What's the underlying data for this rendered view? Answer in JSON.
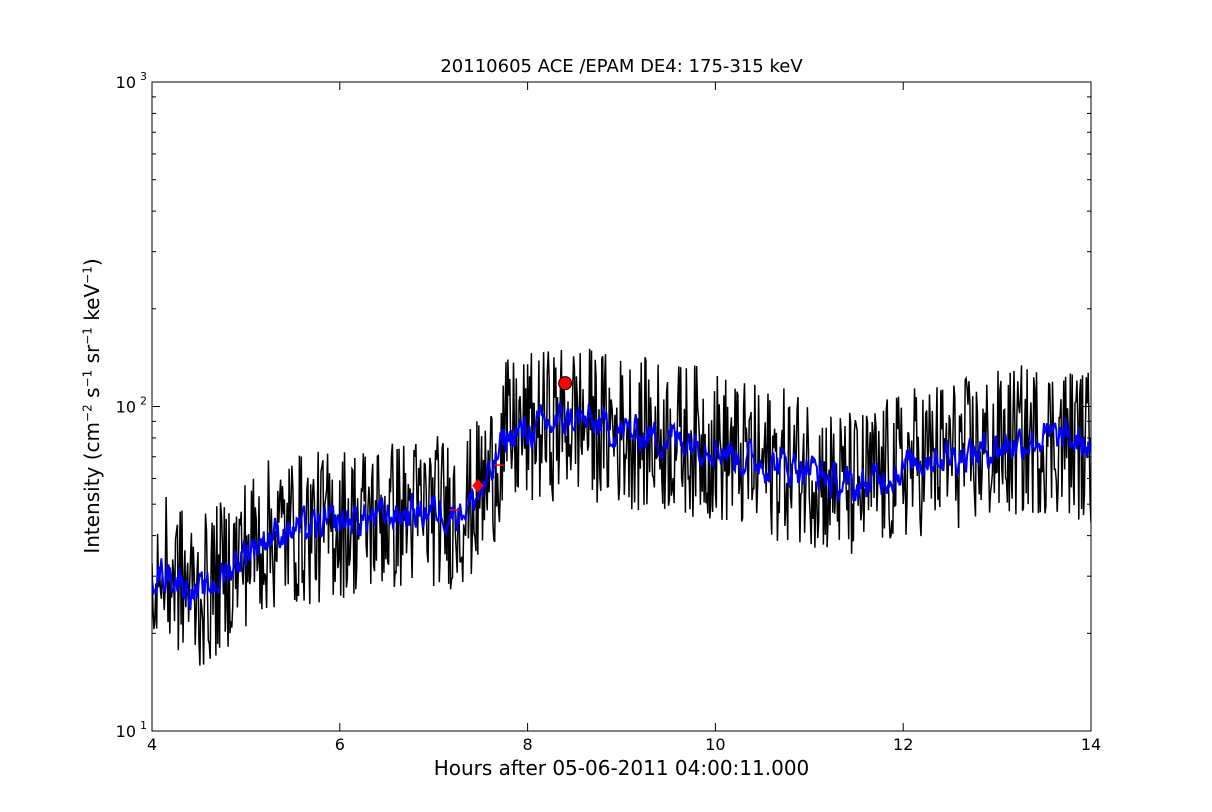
{
  "chart_data": {
    "type": "line",
    "title": "20110605 ACE /EPAM DE4: 175-315 keV",
    "xlabel": "Hours after 05-06-2011 04:00:11.000",
    "ylabel": {
      "prefix": "Intensity (cm",
      "exp1": "−2",
      "s": " s",
      "exp2": "−1",
      "sr": " sr",
      "exp3": "−1",
      "kev": " keV",
      "exp4": "−1",
      "suffix": ")"
    },
    "xlim": [
      4,
      14
    ],
    "ylim": [
      10,
      1000
    ],
    "yscale": "log",
    "xticks": [
      4,
      6,
      8,
      10,
      12,
      14
    ],
    "yticks": [
      {
        "value": 10,
        "base": "10",
        "exp": "1"
      },
      {
        "value": 100,
        "base": "10",
        "exp": "2"
      },
      {
        "value": 1000,
        "base": "10",
        "exp": "3"
      }
    ],
    "grid": false,
    "series": [
      {
        "color": "#000000",
        "x": [
          4.0,
          4.25,
          4.5,
          4.75,
          5.0,
          5.25,
          5.5,
          5.75,
          6.0,
          6.25,
          6.5,
          6.75,
          7.0,
          7.2,
          7.4,
          7.6,
          7.75,
          8.0,
          8.25,
          8.5,
          8.75,
          9.0,
          9.25,
          9.5,
          9.75,
          10.0,
          10.25,
          10.5,
          10.75,
          11.0,
          11.25,
          11.5,
          11.75,
          12.0,
          12.25,
          12.5,
          12.75,
          13.0,
          13.25,
          13.5,
          13.75,
          14.0
        ],
        "y": [
          31,
          30,
          26,
          30,
          36,
          40,
          42,
          42,
          44,
          45,
          46,
          47,
          48,
          47,
          50,
          60,
          80,
          84,
          88,
          92,
          87,
          84,
          82,
          80,
          79,
          76,
          70,
          67,
          66,
          65,
          58,
          56,
          60,
          65,
          70,
          71,
          72,
          75,
          78,
          80,
          79,
          75
        ],
        "noise": 0.55
      },
      {
        "color": "#0000ff",
        "x": [
          4.0,
          4.25,
          4.5,
          4.75,
          5.0,
          5.25,
          5.5,
          5.75,
          6.0,
          6.25,
          6.5,
          6.75,
          7.0,
          7.2,
          7.4,
          7.6,
          7.75,
          8.0,
          8.25,
          8.5,
          8.75,
          9.0,
          9.25,
          9.5,
          9.75,
          10.0,
          10.25,
          10.5,
          10.75,
          11.0,
          11.25,
          11.5,
          11.75,
          12.0,
          12.25,
          12.5,
          12.75,
          13.0,
          13.25,
          13.5,
          13.75,
          14.0
        ],
        "y": [
          31,
          30,
          26,
          30,
          36,
          40,
          42,
          42,
          44,
          45,
          46,
          47,
          48,
          47,
          50,
          60,
          80,
          84,
          88,
          92,
          87,
          84,
          82,
          80,
          79,
          76,
          70,
          67,
          66,
          65,
          58,
          56,
          60,
          65,
          70,
          71,
          72,
          75,
          78,
          80,
          79,
          75
        ],
        "noise": 0.22
      }
    ],
    "markers": [
      {
        "x": 8.4,
        "y": 118,
        "shape": "circle",
        "color": "#ff0000"
      },
      {
        "x": 7.47,
        "y": 57,
        "shape": "diamond",
        "color": "#ff0000"
      },
      {
        "x": 7.22,
        "y": 48,
        "shape": "tick",
        "color": "#ff0000"
      },
      {
        "x": 7.7,
        "y": 66,
        "shape": "tick",
        "color": "#ff0000"
      }
    ]
  }
}
